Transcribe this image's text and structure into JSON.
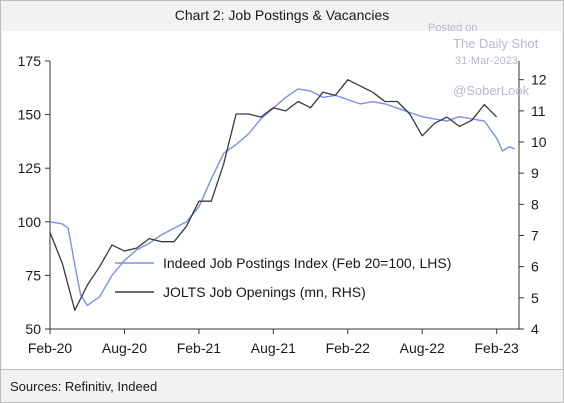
{
  "chart_data": {
    "type": "line",
    "title": "Chart 2: Job Postings & Vacancies",
    "source": "Sources: Refinitiv, Indeed",
    "x_ticks": [
      "Feb-20",
      "Aug-20",
      "Feb-21",
      "Aug-21",
      "Feb-22",
      "Aug-22",
      "Feb-23"
    ],
    "y_left": {
      "lim": [
        50,
        175
      ],
      "ticks": [
        "50",
        "75",
        "100",
        "125",
        "150",
        "175"
      ]
    },
    "y_right": {
      "lim": [
        4,
        12.6
      ],
      "ticks": [
        "4",
        "5",
        "6",
        "7",
        "8",
        "9",
        "10",
        "11",
        "12"
      ]
    },
    "grid": false,
    "legend_position": "lower-right",
    "series": [
      {
        "name": "Indeed Job Postings Index (Feb 20=100, LHS)",
        "axis": "left",
        "color": "#7b8ff0",
        "x": [
          "2020-02-01",
          "2020-03-01",
          "2020-03-15",
          "2020-04-01",
          "2020-04-15",
          "2020-05-01",
          "2020-06-01",
          "2020-07-01",
          "2020-08-01",
          "2020-09-01",
          "2020-10-01",
          "2020-11-01",
          "2020-12-01",
          "2021-01-01",
          "2021-02-01",
          "2021-03-01",
          "2021-04-01",
          "2021-05-01",
          "2021-06-01",
          "2021-07-01",
          "2021-08-01",
          "2021-09-01",
          "2021-10-01",
          "2021-11-01",
          "2021-12-01",
          "2022-01-01",
          "2022-02-01",
          "2022-03-01",
          "2022-04-01",
          "2022-05-01",
          "2022-06-01",
          "2022-07-01",
          "2022-08-01",
          "2022-09-01",
          "2022-10-01",
          "2022-11-01",
          "2022-12-01",
          "2023-01-01",
          "2023-02-01",
          "2023-02-15",
          "2023-03-01",
          "2023-03-15"
        ],
        "y": [
          100,
          99,
          97,
          80,
          66,
          61,
          65,
          75,
          82,
          87,
          90,
          94,
          97,
          100,
          107,
          120,
          132,
          136,
          141,
          148,
          153,
          158,
          162,
          161,
          158,
          159,
          157,
          155,
          156,
          155,
          153,
          151,
          149,
          148,
          147,
          149,
          148,
          147,
          139,
          133,
          135,
          134
        ]
      },
      {
        "name": "JOLTS Job Openings (mn, RHS)",
        "axis": "right",
        "color": "#3a3a3a",
        "x": [
          "2020-02-01",
          "2020-03-01",
          "2020-04-01",
          "2020-05-01",
          "2020-06-01",
          "2020-07-01",
          "2020-08-01",
          "2020-09-01",
          "2020-10-01",
          "2020-11-01",
          "2020-12-01",
          "2021-01-01",
          "2021-02-01",
          "2021-03-01",
          "2021-04-01",
          "2021-05-01",
          "2021-06-01",
          "2021-07-01",
          "2021-08-01",
          "2021-09-01",
          "2021-10-01",
          "2021-11-01",
          "2021-12-01",
          "2022-01-01",
          "2022-02-01",
          "2022-03-01",
          "2022-04-01",
          "2022-05-01",
          "2022-06-01",
          "2022-07-01",
          "2022-08-01",
          "2022-09-01",
          "2022-10-01",
          "2022-11-01",
          "2022-12-01",
          "2023-01-01",
          "2023-02-01"
        ],
        "y": [
          7.1,
          6.1,
          4.6,
          5.4,
          6.0,
          6.7,
          6.5,
          6.6,
          6.9,
          6.8,
          6.8,
          7.3,
          8.1,
          8.1,
          9.3,
          10.9,
          10.9,
          10.8,
          11.1,
          11.0,
          11.3,
          11.1,
          11.6,
          11.5,
          12.0,
          11.8,
          11.6,
          11.3,
          11.3,
          10.9,
          10.2,
          10.6,
          10.8,
          10.5,
          10.7,
          11.2,
          10.8
        ]
      }
    ]
  },
  "watermark": {
    "posted_on": "Posted on",
    "publisher": "The Daily Shot",
    "date": "31-Mar-2023",
    "handle": "@SoberLook"
  }
}
